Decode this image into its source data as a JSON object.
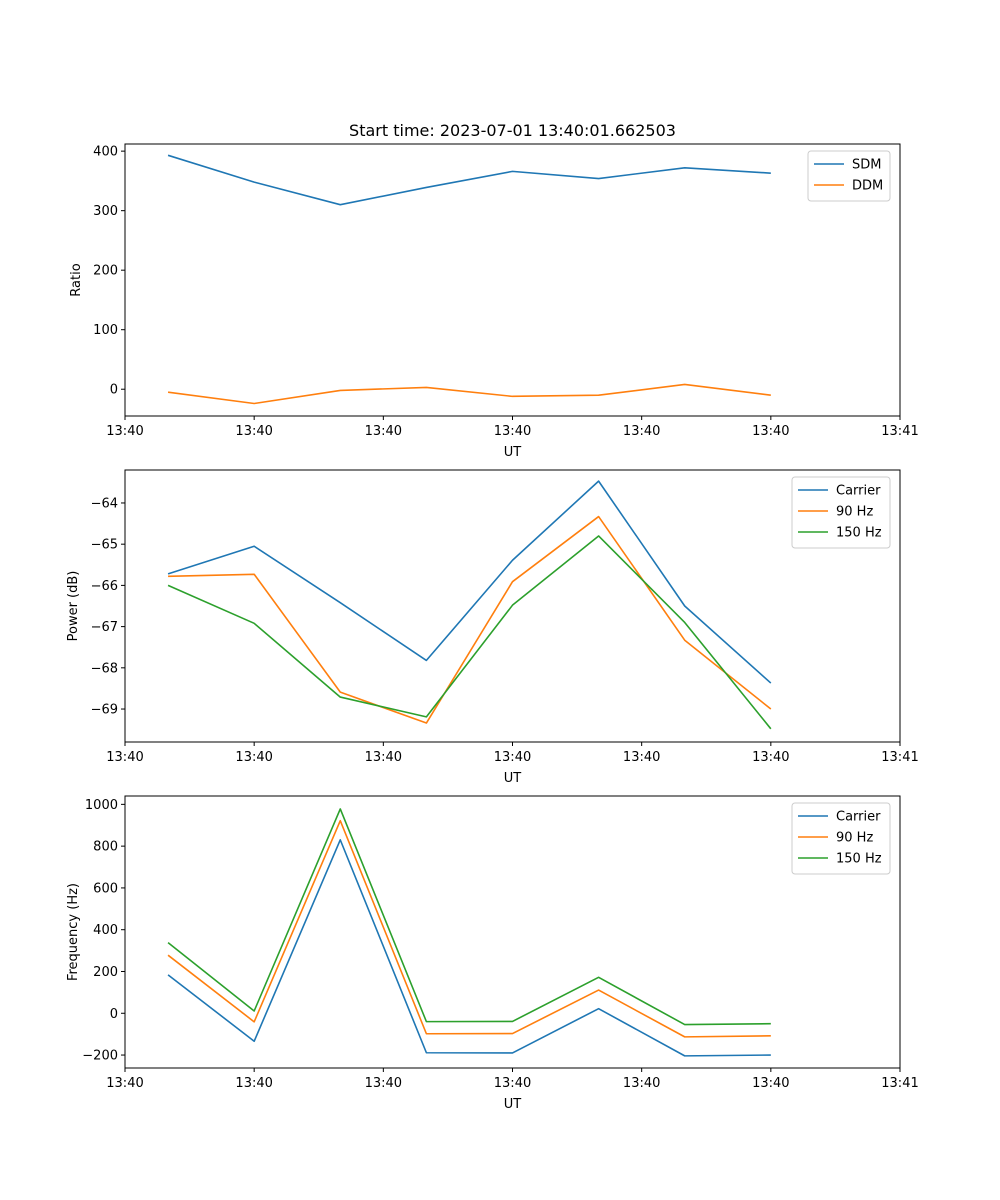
{
  "chart_data": [
    {
      "type": "line",
      "title": "Start time: 2023-07-01 13:40:01.662503",
      "xlabel": "UT",
      "ylabel": "Ratio",
      "xlim": [
        -0.5,
        8.5
      ],
      "ylim": [
        -45,
        412
      ],
      "x": [
        0,
        1,
        2,
        3,
        4,
        5,
        6,
        7
      ],
      "xticks": [
        -0.5,
        1.0,
        2.5,
        4.0,
        5.5,
        7.0,
        8.5
      ],
      "xtick_labels": [
        "13:40",
        "13:40",
        "13:40",
        "13:40",
        "13:40",
        "13:40",
        "13:41"
      ],
      "yticks": [
        0,
        100,
        200,
        300,
        400
      ],
      "ytick_labels": [
        "0",
        "100",
        "200",
        "300",
        "400"
      ],
      "legend_position": "top-right",
      "series": [
        {
          "name": "SDM",
          "color": "#1f77b4",
          "values": [
            393,
            348,
            310,
            339,
            366,
            354,
            372,
            363
          ]
        },
        {
          "name": "DDM",
          "color": "#ff7f0e",
          "values": [
            -5,
            -24,
            -2,
            3,
            -12,
            -10,
            8,
            -10
          ]
        }
      ]
    },
    {
      "type": "line",
      "title": "",
      "xlabel": "UT",
      "ylabel": "Power (dB)",
      "xlim": [
        -0.5,
        8.5
      ],
      "ylim": [
        -69.8,
        -63.2
      ],
      "x": [
        0,
        1,
        2,
        3,
        4,
        5,
        6,
        7
      ],
      "xticks": [
        -0.5,
        1.0,
        2.5,
        4.0,
        5.5,
        7.0,
        8.5
      ],
      "xtick_labels": [
        "13:40",
        "13:40",
        "13:40",
        "13:40",
        "13:40",
        "13:40",
        "13:41"
      ],
      "yticks": [
        -69,
        -68,
        -67,
        -66,
        -65,
        -64
      ],
      "ytick_labels": [
        "−69",
        "−68",
        "−67",
        "−66",
        "−65",
        "−64"
      ],
      "legend_position": "top-right",
      "series": [
        {
          "name": "Carrier",
          "color": "#1f77b4",
          "values": [
            -65.72,
            -65.05,
            -66.42,
            -67.82,
            -65.39,
            -63.47,
            -66.5,
            -68.37
          ]
        },
        {
          "name": "90 Hz",
          "color": "#ff7f0e",
          "values": [
            -65.78,
            -65.73,
            -68.59,
            -69.34,
            -65.91,
            -64.33,
            -67.33,
            -69.0
          ]
        },
        {
          "name": "150 Hz",
          "color": "#2ca02c",
          "values": [
            -66.0,
            -66.92,
            -68.71,
            -69.19,
            -66.48,
            -64.8,
            -66.9,
            -69.48
          ]
        }
      ]
    },
    {
      "type": "line",
      "title": "",
      "xlabel": "UT",
      "ylabel": "Frequency (Hz)",
      "xlim": [
        -0.5,
        8.5
      ],
      "ylim": [
        -262,
        1040
      ],
      "x": [
        0,
        1,
        2,
        3,
        4,
        5,
        6,
        7
      ],
      "xticks": [
        -0.5,
        1.0,
        2.5,
        4.0,
        5.5,
        7.0,
        8.5
      ],
      "xtick_labels": [
        "13:40",
        "13:40",
        "13:40",
        "13:40",
        "13:40",
        "13:40",
        "13:41"
      ],
      "yticks": [
        -200,
        0,
        200,
        400,
        600,
        800,
        1000
      ],
      "ytick_labels": [
        "−200",
        "0",
        "200",
        "400",
        "600",
        "800",
        "1000"
      ],
      "legend_position": "top-right",
      "series": [
        {
          "name": "Carrier",
          "color": "#1f77b4",
          "values": [
            184,
            -134,
            830,
            -189,
            -190,
            22,
            -204,
            -200
          ]
        },
        {
          "name": "90 Hz",
          "color": "#ff7f0e",
          "values": [
            278,
            -41,
            922,
            -98,
            -97,
            111,
            -113,
            -108
          ]
        },
        {
          "name": "150 Hz",
          "color": "#2ca02c",
          "values": [
            338,
            11,
            978,
            -40,
            -39,
            172,
            -54,
            -50
          ]
        }
      ]
    }
  ]
}
